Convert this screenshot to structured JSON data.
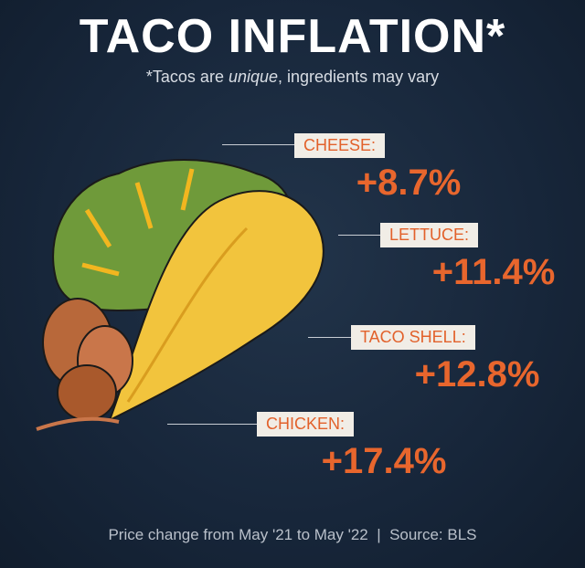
{
  "header": {
    "title": "TACO INFLATION*",
    "subtitle": [
      "*Tacos are ",
      "unique",
      ", ingredients may vary"
    ]
  },
  "items": [
    {
      "label": "CHEESE:",
      "change": "+8.7%"
    },
    {
      "label": "LETTUCE:",
      "change": "+11.4%"
    },
    {
      "label": "TACO SHELL:",
      "change": "+12.8%"
    },
    {
      "label": "CHICKEN:",
      "change": "+17.4%"
    }
  ],
  "footer": "Price change from May '21 to May '22  |  Source: BLS"
}
